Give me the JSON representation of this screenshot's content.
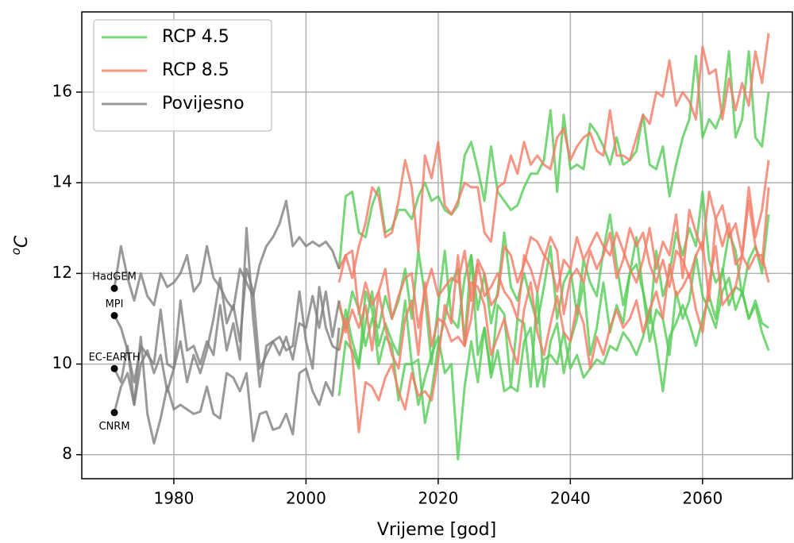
{
  "chart_data": {
    "type": "line",
    "xlabel": "Vrijeme [god]",
    "ylabel": [
      "o",
      "C"
    ],
    "xlim": [
      1966.07,
      2073.6
    ],
    "ylim": [
      7.47,
      17.77
    ],
    "xticks": [
      1980,
      2000,
      2020,
      2040,
      2060
    ],
    "yticks": [
      8,
      10,
      12,
      14,
      16
    ],
    "grid": true,
    "legend": "upper left",
    "series": [
      {
        "name": "RCP 4.5",
        "color": "#55cc55",
        "x": [
          2005,
          2006,
          2007,
          2008,
          2009,
          2010,
          2011,
          2012,
          2013,
          2014,
          2015,
          2016,
          2017,
          2018,
          2019,
          2020,
          2021,
          2022,
          2023,
          2024,
          2025,
          2026,
          2027,
          2028,
          2029,
          2030,
          2031,
          2032,
          2033,
          2034,
          2035,
          2036,
          2037,
          2038,
          2039,
          2040,
          2041,
          2042,
          2043,
          2044,
          2045,
          2046,
          2047,
          2048,
          2049,
          2050,
          2051,
          2052,
          2053,
          2054,
          2055,
          2056,
          2057,
          2058,
          2059,
          2060,
          2061,
          2062,
          2063,
          2064,
          2065,
          2066,
          2067,
          2068,
          2069,
          2070
        ],
        "values": [
          [
            12.1,
            13.7,
            13.8,
            12.9,
            12.8,
            13.5,
            13.9,
            12.9,
            13.0,
            13.4,
            13.4,
            13.2,
            13.7,
            14.0,
            13.6,
            13.7,
            13.4,
            13.3,
            13.5,
            14.6,
            14.9,
            14.3,
            13.6,
            14.8,
            13.8,
            13.6,
            13.4,
            13.5,
            13.9,
            14.2,
            14.2,
            14.5,
            15.6,
            13.8,
            15.5,
            14.3,
            14.4,
            14.3,
            15.3,
            15.1,
            14.8,
            14.4,
            15.0,
            14.4,
            14.5,
            14.7,
            15.5,
            14.4,
            14.3,
            14.8,
            13.7,
            14.4,
            15.0,
            15.4,
            16.8,
            15.0,
            15.4,
            15.2,
            15.6,
            16.9,
            15.0,
            15.4,
            16.9,
            15.0,
            14.8,
            16.0
          ],
          [
            11.3,
            10.8,
            11.6,
            11.2,
            10.4,
            11.0,
            10.8,
            11.5,
            11.0,
            11.4,
            12.1,
            11.0,
            12.5,
            11.5,
            10.0,
            11.3,
            12.5,
            11.0,
            10.8,
            11.9,
            12.4,
            11.2,
            12.0,
            10.9,
            11.6,
            12.9,
            11.7,
            11.4,
            12.0,
            11.4,
            10.9,
            11.7,
            12.6,
            11.0,
            11.8,
            12.1,
            11.1,
            12.3,
            11.8,
            11.5,
            12.5,
            13.3,
            12.2,
            11.3,
            12.0,
            12.8,
            11.6,
            10.9,
            12.5,
            11.5,
            12.0,
            12.9,
            12.4,
            13.0,
            12.6,
            13.8,
            12.3,
            11.8,
            12.0,
            12.9,
            12.5,
            11.5,
            12.3,
            12.6,
            12.0,
            13.3
          ],
          [
            10.3,
            11.2,
            10.5,
            10.0,
            10.9,
            11.6,
            10.4,
            10.9,
            10.5,
            10.2,
            11.4,
            10.0,
            10.1,
            8.7,
            9.4,
            10.4,
            11.0,
            11.8,
            12.1,
            10.5,
            12.4,
            10.2,
            10.8,
            9.8,
            11.3,
            11.1,
            9.5,
            11.0,
            10.9,
            9.5,
            11.6,
            9.5,
            10.5,
            10.9,
            9.8,
            10.5,
            11.0,
            11.8,
            10.2,
            10.8,
            11.8,
            10.7,
            11.3,
            10.9,
            12.0,
            12.2,
            11.6,
            10.5,
            11.2,
            11.0,
            10.2,
            11.6,
            11.0,
            11.4,
            12.4,
            11.5,
            11.2,
            10.8,
            11.6,
            11.9,
            11.2,
            11.6,
            11.0,
            11.4,
            10.9,
            10.8
          ],
          [
            9.3,
            10.5,
            10.3,
            9.9,
            11.6,
            11.2,
            10.0,
            10.6,
            10.4,
            9.2,
            10.0,
            10.0,
            9.1,
            9.7,
            10.2,
            10.6,
            9.8,
            10.0,
            7.9,
            9.5,
            10.5,
            9.6,
            10.8,
            9.7,
            10.3,
            9.4,
            9.5,
            9.4,
            10.5,
            10.8,
            9.5,
            10.1,
            10.2,
            10.0,
            10.7,
            9.9,
            10.2,
            9.7,
            9.9,
            10.1,
            10.0,
            10.4,
            10.3,
            10.7,
            10.5,
            10.2,
            10.6,
            11.2,
            10.4,
            9.4,
            10.6,
            10.9,
            11.3,
            10.9,
            10.4,
            11.0,
            11.5,
            11.0,
            12.1,
            11.3,
            11.7,
            11.6,
            11.0,
            11.3,
            10.7,
            10.3
          ]
        ]
      },
      {
        "name": "RCP 8.5",
        "color": "#f47a64",
        "x": [
          2005,
          2006,
          2007,
          2008,
          2009,
          2010,
          2011,
          2012,
          2013,
          2014,
          2015,
          2016,
          2017,
          2018,
          2019,
          2020,
          2021,
          2022,
          2023,
          2024,
          2025,
          2026,
          2027,
          2028,
          2029,
          2030,
          2031,
          2032,
          2033,
          2034,
          2035,
          2036,
          2037,
          2038,
          2039,
          2040,
          2041,
          2042,
          2043,
          2044,
          2045,
          2046,
          2047,
          2048,
          2049,
          2050,
          2051,
          2052,
          2053,
          2054,
          2055,
          2056,
          2057,
          2058,
          2059,
          2060,
          2061,
          2062,
          2063,
          2064,
          2065,
          2066,
          2067,
          2068,
          2069,
          2070
        ],
        "values": [
          [
            12.1,
            12.4,
            11.9,
            12.6,
            13.1,
            13.9,
            13.7,
            12.8,
            12.9,
            13.6,
            14.5,
            13.9,
            12.5,
            14.6,
            14.1,
            14.9,
            13.5,
            13.3,
            13.6,
            14.0,
            13.9,
            13.9,
            12.9,
            12.7,
            13.9,
            14.0,
            14.6,
            14.2,
            14.9,
            14.4,
            14.6,
            14.4,
            14.3,
            15.0,
            15.2,
            14.5,
            14.8,
            15.0,
            15.1,
            14.7,
            14.6,
            15.6,
            14.6,
            14.6,
            14.5,
            15.0,
            15.5,
            15.3,
            16.0,
            15.9,
            16.7,
            15.7,
            16.0,
            15.8,
            15.4,
            17.0,
            16.4,
            16.5,
            15.4,
            16.3,
            15.6,
            16.2,
            15.7,
            16.9,
            16.2,
            17.3
          ],
          [
            11.8,
            12.4,
            12.5,
            11.1,
            11.8,
            11.3,
            11.6,
            12.1,
            11.0,
            11.5,
            11.9,
            12.0,
            10.8,
            11.6,
            12.1,
            11.5,
            11.7,
            11.9,
            11.8,
            12.5,
            11.4,
            12.3,
            12.0,
            11.3,
            11.5,
            12.6,
            12.4,
            11.8,
            12.2,
            12.8,
            12.7,
            12.4,
            12.2,
            11.6,
            12.3,
            12.1,
            12.8,
            12.3,
            12.6,
            12.9,
            12.6,
            12.4,
            12.9,
            12.5,
            12.1,
            11.8,
            12.3,
            13.0,
            12.1,
            12.7,
            12.4,
            13.3,
            11.9,
            13.4,
            12.9,
            12.5,
            13.8,
            13.2,
            13.5,
            12.8,
            13.1,
            12.4,
            13.9,
            12.8,
            13.4,
            14.5
          ],
          [
            11.4,
            10.7,
            11.2,
            10.8,
            11.3,
            10.3,
            11.6,
            10.8,
            10.2,
            9.9,
            11.0,
            11.4,
            10.2,
            11.8,
            10.4,
            11.0,
            10.9,
            10.5,
            10.6,
            10.4,
            11.0,
            12.2,
            11.5,
            11.7,
            12.0,
            11.6,
            11.4,
            11.0,
            12.4,
            12.1,
            11.6,
            12.3,
            12.8,
            12.5,
            11.1,
            11.9,
            12.1,
            11.8,
            12.5,
            12.1,
            12.4,
            12.9,
            11.9,
            12.3,
            13.0,
            12.6,
            12.9,
            12.2,
            11.8,
            12.3,
            11.7,
            12.5,
            12.3,
            11.9,
            12.4,
            12.7,
            11.4,
            13.2,
            12.6,
            13.1,
            12.2,
            12.4,
            13.6,
            12.6,
            12.2,
            13.9
          ],
          [
            10.3,
            11.0,
            10.2,
            8.5,
            9.6,
            9.5,
            9.2,
            9.7,
            10.0,
            9.4,
            9.0,
            9.8,
            9.3,
            9.4,
            9.2,
            10.1,
            11.3,
            10.9,
            12.4,
            10.4,
            11.8,
            11.7,
            11.3,
            10.2,
            10.6,
            11.0,
            10.4,
            10.0,
            11.2,
            11.8,
            10.7,
            10.2,
            10.9,
            11.5,
            10.7,
            10.5,
            11.3,
            10.9,
            9.9,
            10.6,
            10.2,
            10.8,
            11.2,
            10.8,
            11.0,
            11.4,
            10.7,
            11.2,
            11.6,
            11.0,
            12.2,
            11.5,
            11.7,
            12.0,
            11.2,
            10.7,
            11.8,
            12.6,
            11.3,
            11.5,
            11.7,
            12.4,
            12.1,
            12.4,
            12.4,
            11.8
          ]
        ]
      },
      {
        "name": "Povijesno",
        "color": "#808080",
        "x": [
          1971,
          1972,
          1973,
          1974,
          1975,
          1976,
          1977,
          1978,
          1979,
          1980,
          1981,
          1982,
          1983,
          1984,
          1985,
          1986,
          1987,
          1988,
          1989,
          1990,
          1991,
          1992,
          1993,
          1994,
          1995,
          1996,
          1997,
          1998,
          1999,
          2000,
          2001,
          2002,
          2003,
          2004,
          2005
        ],
        "values": [
          [
            11.67,
            12.6,
            11.9,
            11.4,
            12.0,
            11.5,
            11.3,
            12.0,
            11.7,
            11.8,
            12.0,
            12.4,
            11.6,
            11.8,
            12.6,
            11.9,
            11.7,
            11.4,
            11.2,
            12.1,
            11.8,
            11.5,
            12.2,
            12.6,
            12.8,
            13.1,
            13.6,
            12.6,
            12.8,
            12.6,
            12.7,
            12.6,
            12.7,
            12.5,
            12.1
          ],
          [
            11.07,
            10.8,
            10.3,
            9.6,
            10.4,
            10.2,
            10.0,
            11.2,
            10.0,
            9.9,
            11.4,
            10.3,
            10.4,
            10.0,
            10.5,
            10.2,
            11.3,
            10.3,
            10.9,
            10.1,
            13.0,
            11.0,
            9.5,
            10.4,
            10.5,
            10.2,
            10.6,
            10.1,
            10.9,
            10.8,
            11.5,
            10.8,
            11.6,
            10.6,
            11.4
          ],
          [
            9.9,
            9.6,
            10.4,
            9.1,
            10.0,
            10.3,
            9.8,
            10.2,
            9.4,
            9.9,
            10.5,
            9.6,
            10.2,
            9.8,
            10.3,
            11.0,
            11.9,
            10.9,
            11.3,
            10.5,
            12.1,
            11.6,
            9.9,
            10.2,
            10.5,
            10.6,
            10.3,
            10.4,
            11.6,
            10.5,
            9.9,
            11.7,
            10.8,
            10.4,
            10.3
          ],
          [
            8.93,
            9.5,
            9.8,
            9.1,
            10.6,
            8.9,
            8.25,
            8.8,
            9.5,
            9.0,
            9.1,
            9.0,
            8.9,
            8.95,
            9.5,
            8.9,
            8.8,
            9.8,
            9.7,
            9.4,
            9.8,
            8.3,
            8.9,
            8.95,
            8.55,
            8.6,
            8.9,
            8.45,
            9.8,
            9.9,
            9.4,
            9.1,
            9.6,
            9.3,
            10.8
          ]
        ]
      }
    ],
    "annotations": [
      {
        "text": "HadGEM",
        "x": 1971,
        "y": 11.67
      },
      {
        "text": "MPI",
        "x": 1971,
        "y": 11.07
      },
      {
        "text": "EC-EARTH",
        "x": 1971,
        "y": 9.9
      },
      {
        "text": "CNRM",
        "x": 1971,
        "y": 8.93
      }
    ]
  }
}
